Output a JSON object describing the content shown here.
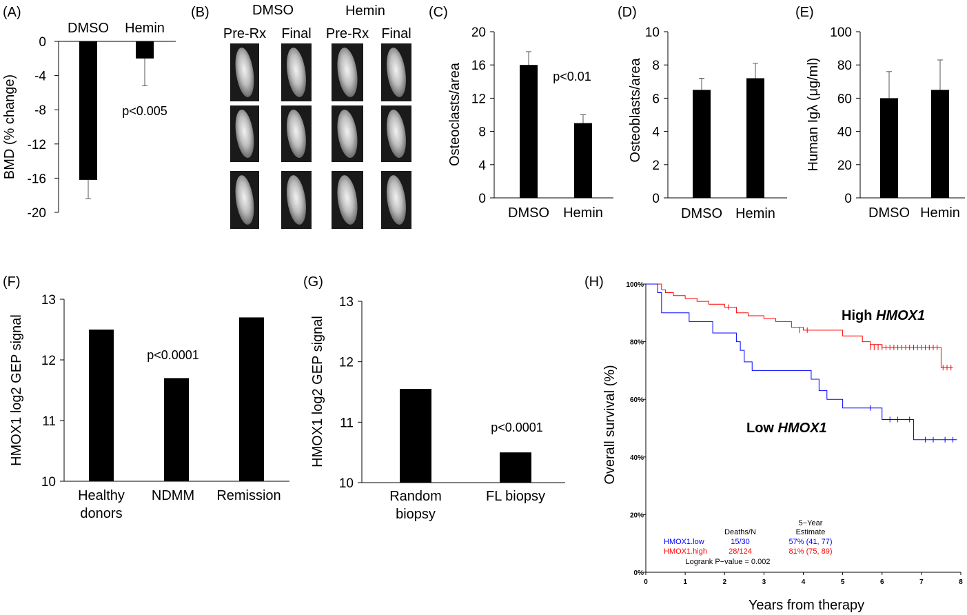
{
  "panels": {
    "A": {
      "label": "(A)",
      "categories": [
        "DMSO",
        "Hemin"
      ],
      "values": [
        -16.2,
        -2.0
      ],
      "errors": [
        2.2,
        3.2
      ],
      "ylabel": "BMD (% change)",
      "yticks": [
        "0",
        "-4",
        "-8",
        "-12",
        "-16",
        "-20"
      ],
      "annotation": "p<0.005"
    },
    "B": {
      "label": "(B)",
      "group_dmso": "DMSO",
      "group_hemin": "Hemin",
      "col_labels": [
        "Pre-Rx",
        "Final",
        "Pre-Rx",
        "Final"
      ]
    },
    "C": {
      "label": "(C)",
      "categories": [
        "DMSO",
        "Hemin"
      ],
      "values": [
        16.0,
        9.0
      ],
      "errors": [
        1.6,
        1.0
      ],
      "ylabel": "Osteoclasts/area",
      "yticks": [
        "0",
        "4",
        "8",
        "12",
        "16",
        "20"
      ],
      "annotation": "p<0.01"
    },
    "D": {
      "label": "(D)",
      "categories": [
        "DMSO",
        "Hemin"
      ],
      "values": [
        6.5,
        7.2
      ],
      "errors": [
        0.7,
        0.9
      ],
      "ylabel": "Osteoblasts/area",
      "yticks": [
        "0",
        "2",
        "4",
        "6",
        "8",
        "10"
      ]
    },
    "E": {
      "label": "(E)",
      "categories": [
        "DMSO",
        "Hemin"
      ],
      "values": [
        60,
        65
      ],
      "errors": [
        16,
        18
      ],
      "ylabel": "Human Igλ (μg/ml)",
      "yticks": [
        "0",
        "20",
        "40",
        "60",
        "80",
        "100"
      ]
    },
    "F": {
      "label": "(F)",
      "categories": [
        "Healthy donors",
        "NDMM",
        "Remission"
      ],
      "cat_lines": [
        [
          "Healthy",
          "donors"
        ],
        [
          "NDMM"
        ],
        [
          "Remission"
        ]
      ],
      "values": [
        12.5,
        11.7,
        12.7
      ],
      "ylabel": "HMOX1 log2 GEP signal",
      "yticks": [
        "10",
        "11",
        "12",
        "13"
      ],
      "annotation": "p<0.0001"
    },
    "G": {
      "label": "(G)",
      "categories": [
        "Random biopsy",
        "FL biopsy"
      ],
      "cat_lines": [
        [
          "Random",
          "biopsy"
        ],
        [
          "FL biopsy"
        ]
      ],
      "values": [
        11.55,
        10.5
      ],
      "ylabel": "HMOX1 log2 GEP signal",
      "yticks": [
        "10",
        "11",
        "12",
        "13"
      ],
      "annotation": "p<0.0001"
    },
    "H": {
      "label": "(H)",
      "ylabel": "Overall survival (%)",
      "xlabel": "Years from therapy",
      "yticks": [
        "0%",
        "20%",
        "40%",
        "60%",
        "80%",
        "100%"
      ],
      "xticks": [
        "0",
        "1",
        "2",
        "3",
        "4",
        "5",
        "6",
        "7",
        "8"
      ],
      "high_label": "High ",
      "high_gene": "HMOX1",
      "low_label": "Low ",
      "low_gene": "HMOX1",
      "table_col1": "Deaths/N",
      "table_col2a": "5−Year",
      "table_col2b": "Estimate",
      "row_low_name": "HMOX1.low",
      "row_low_deaths": "15/30",
      "row_low_est": "57% (41, 77)",
      "row_high_name": "HMOX1.high",
      "row_high_deaths": "28/124",
      "row_high_est": "81% (75, 89)",
      "logrank": "Logrank P−value = 0.002"
    }
  },
  "chart_data": [
    {
      "type": "bar",
      "panel": "A",
      "categories": [
        "DMSO",
        "Hemin"
      ],
      "values": [
        -16.2,
        -2.0
      ],
      "errors": [
        2.2,
        3.2
      ],
      "ylabel": "BMD (% change)",
      "ylim": [
        -20,
        0
      ],
      "annotation": "p<0.005"
    },
    {
      "type": "bar",
      "panel": "C",
      "categories": [
        "DMSO",
        "Hemin"
      ],
      "values": [
        16.0,
        9.0
      ],
      "errors": [
        1.6,
        1.0
      ],
      "ylabel": "Osteoclasts/area",
      "ylim": [
        0,
        20
      ],
      "annotation": "p<0.01"
    },
    {
      "type": "bar",
      "panel": "D",
      "categories": [
        "DMSO",
        "Hemin"
      ],
      "values": [
        6.5,
        7.2
      ],
      "errors": [
        0.7,
        0.9
      ],
      "ylabel": "Osteoblasts/area",
      "ylim": [
        0,
        10
      ]
    },
    {
      "type": "bar",
      "panel": "E",
      "categories": [
        "DMSO",
        "Hemin"
      ],
      "values": [
        60,
        65
      ],
      "errors": [
        16,
        18
      ],
      "ylabel": "Human Igλ (μg/ml)",
      "ylim": [
        0,
        100
      ]
    },
    {
      "type": "bar",
      "panel": "F",
      "categories": [
        "Healthy donors",
        "NDMM",
        "Remission"
      ],
      "values": [
        12.5,
        11.7,
        12.7
      ],
      "ylabel": "HMOX1 log2 GEP signal",
      "ylim": [
        10,
        13
      ],
      "annotation": "p<0.0001"
    },
    {
      "type": "bar",
      "panel": "G",
      "categories": [
        "Random biopsy",
        "FL biopsy"
      ],
      "values": [
        11.55,
        10.5
      ],
      "ylabel": "HMOX1 log2 GEP signal",
      "ylim": [
        10,
        13
      ],
      "annotation": "p<0.0001"
    },
    {
      "type": "line",
      "panel": "H",
      "xlabel": "Years from therapy",
      "ylabel": "Overall survival (%)",
      "xlim": [
        0,
        8
      ],
      "ylim": [
        0,
        100
      ],
      "series": [
        {
          "name": "HMOX1.high",
          "color": "#ff0000",
          "x": [
            0,
            0.4,
            0.5,
            0.7,
            1.0,
            1.3,
            1.6,
            2.0,
            2.3,
            2.6,
            3.0,
            3.3,
            3.7,
            4.0,
            4.5,
            5.0,
            5.5,
            5.7,
            6.0,
            7.0,
            7.5,
            7.8
          ],
          "y": [
            100,
            98,
            97,
            96,
            95,
            94,
            93,
            92,
            90,
            89,
            88,
            87,
            85,
            84,
            84,
            82,
            80,
            79,
            78,
            78,
            71,
            71
          ]
        },
        {
          "name": "HMOX1.low",
          "color": "#0000ff",
          "x": [
            0,
            0.3,
            0.4,
            1.1,
            1.7,
            2.3,
            2.4,
            2.5,
            2.7,
            4.2,
            4.4,
            4.6,
            5.0,
            6.0,
            6.8,
            7.9
          ],
          "y": [
            100,
            97,
            90,
            87,
            83,
            80,
            77,
            73,
            70,
            67,
            63,
            60,
            57,
            53,
            46,
            46
          ]
        }
      ]
    }
  ]
}
